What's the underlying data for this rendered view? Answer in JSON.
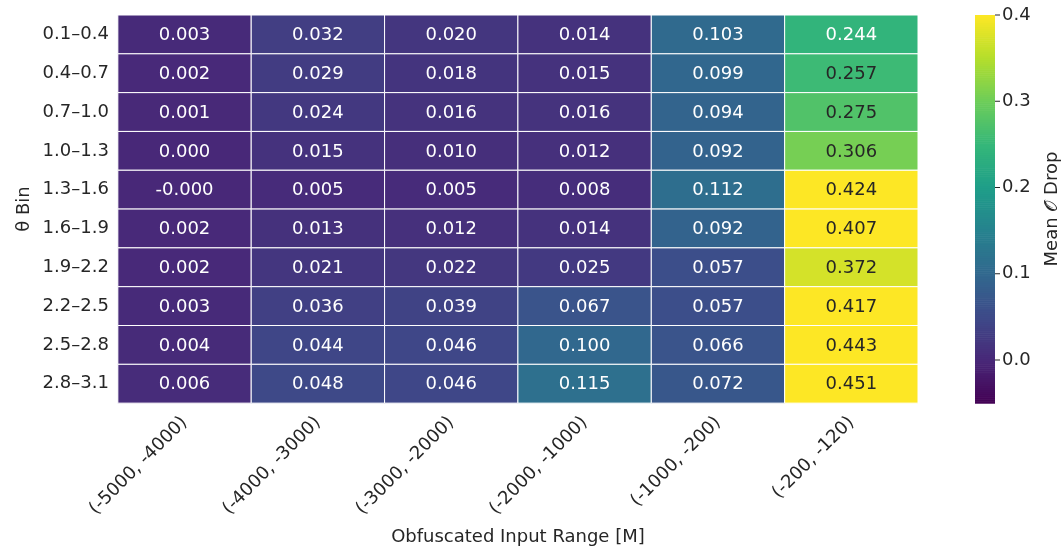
{
  "chart_data": {
    "type": "heatmap",
    "xlabel": "Obfuscated Input Range [M]",
    "ylabel": "θ Bin",
    "clabel": "Mean 𝒪 Drop",
    "categories": [
      "(-5000, -4000)",
      "(-4000, -3000)",
      "(-3000, -2000)",
      "(-2000, -1000)",
      "(-1000, -200)",
      "(-200, -120)"
    ],
    "y_categories": [
      "0.1–0.4",
      "0.4–0.7",
      "0.7–1.0",
      "1.0–1.3",
      "1.3–1.6",
      "1.6–1.9",
      "1.9–2.2",
      "2.2–2.5",
      "2.5–2.8",
      "2.8–3.1"
    ],
    "cells": [
      [
        0.003,
        0.032,
        0.02,
        0.014,
        0.103,
        0.244
      ],
      [
        0.002,
        0.029,
        0.018,
        0.015,
        0.099,
        0.257
      ],
      [
        0.001,
        0.024,
        0.016,
        0.016,
        0.094,
        0.275
      ],
      [
        0.0,
        0.015,
        0.01,
        0.012,
        0.092,
        0.306
      ],
      [
        0,
        0.005,
        0.005,
        0.008,
        0.112,
        0.424
      ],
      [
        0.002,
        0.013,
        0.012,
        0.014,
        0.092,
        0.407
      ],
      [
        0.002,
        0.021,
        0.022,
        0.025,
        0.057,
        0.372
      ],
      [
        0.003,
        0.036,
        0.039,
        0.067,
        0.057,
        0.417
      ],
      [
        0.004,
        0.044,
        0.046,
        0.1,
        0.066,
        0.443
      ],
      [
        0.006,
        0.048,
        0.046,
        0.115,
        0.072,
        0.451
      ]
    ],
    "cell_labels": [
      [
        "0.003",
        "0.032",
        "0.020",
        "0.014",
        "0.103",
        "0.244"
      ],
      [
        "0.002",
        "0.029",
        "0.018",
        "0.015",
        "0.099",
        "0.257"
      ],
      [
        "0.001",
        "0.024",
        "0.016",
        "0.016",
        "0.094",
        "0.275"
      ],
      [
        "0.000",
        "0.015",
        "0.010",
        "0.012",
        "0.092",
        "0.306"
      ],
      [
        "-0.000",
        "0.005",
        "0.005",
        "0.008",
        "0.112",
        "0.424"
      ],
      [
        "0.002",
        "0.013",
        "0.012",
        "0.014",
        "0.092",
        "0.407"
      ],
      [
        "0.002",
        "0.021",
        "0.022",
        "0.025",
        "0.057",
        "0.372"
      ],
      [
        "0.003",
        "0.036",
        "0.039",
        "0.067",
        "0.057",
        "0.417"
      ],
      [
        "0.004",
        "0.044",
        "0.046",
        "0.100",
        "0.066",
        "0.443"
      ],
      [
        "0.006",
        "0.048",
        "0.046",
        "0.115",
        "0.072",
        "0.451"
      ]
    ],
    "clim": [
      -0.05,
      0.4
    ],
    "cticks": [
      {
        "value": 0,
        "label": "0.0"
      },
      0.1,
      0.2,
      0.3,
      0.4
    ]
  }
}
